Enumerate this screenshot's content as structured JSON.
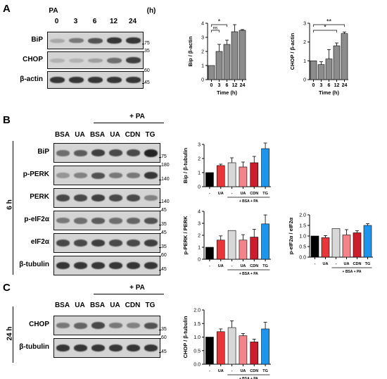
{
  "panels": {
    "a": "A",
    "b": "B",
    "c": "C"
  },
  "panelA": {
    "treatment": "PA",
    "lanes": [
      "0",
      "3",
      "6",
      "12",
      "24"
    ],
    "unit": "(h)",
    "blots": [
      {
        "label": "BiP",
        "mw": "75",
        "levels": [
          0.25,
          0.5,
          0.7,
          0.85,
          0.85
        ]
      },
      {
        "label": "CHOP",
        "mw_top": "35",
        "mw": "",
        "levels": [
          0.2,
          0.2,
          0.3,
          0.55,
          0.8
        ]
      },
      {
        "label": "β-actin",
        "mw_top": "60",
        "mw": "45",
        "levels": [
          0.85,
          0.85,
          0.85,
          0.85,
          0.85
        ]
      }
    ]
  },
  "panelB": {
    "condition": "+ PA",
    "lanes": [
      "BSA",
      "UA",
      "BSA",
      "UA",
      "CDN",
      "TG"
    ],
    "time": "6 h",
    "blots": [
      {
        "label": "BiP",
        "mw": "75",
        "levels": [
          0.55,
          0.65,
          0.8,
          0.75,
          0.75,
          0.95
        ]
      },
      {
        "label": "p-PERK",
        "mw_top": "180",
        "mw": "140",
        "levels": [
          0.35,
          0.45,
          0.7,
          0.5,
          0.5,
          0.85
        ]
      },
      {
        "label": "PERK",
        "mw": "140",
        "levels": [
          0.75,
          0.75,
          0.8,
          0.75,
          0.75,
          0.45
        ]
      },
      {
        "label": "p-eIF2α",
        "mw_top": "45",
        "mw": "35",
        "levels": [
          0.5,
          0.55,
          0.65,
          0.55,
          0.6,
          0.7
        ]
      },
      {
        "label": "eIF2α",
        "mw_top": "45",
        "mw": "35",
        "levels": [
          0.75,
          0.75,
          0.8,
          0.75,
          0.75,
          0.8
        ]
      },
      {
        "label": "β-tubulin",
        "mw_top": "60",
        "mw": "45",
        "levels": [
          0.85,
          0.85,
          0.85,
          0.85,
          0.85,
          0.85
        ]
      }
    ]
  },
  "panelC": {
    "condition": "+ PA",
    "lanes": [
      "BSA",
      "UA",
      "BSA",
      "UA",
      "CDN",
      "TG"
    ],
    "time": "24 h",
    "blots": [
      {
        "label": "CHOP",
        "mw": "35",
        "levels": [
          0.5,
          0.6,
          0.75,
          0.5,
          0.45,
          0.7
        ]
      },
      {
        "label": "β-tubulin",
        "mw_top": "60",
        "mw": "45",
        "levels": [
          0.85,
          0.85,
          0.85,
          0.85,
          0.85,
          0.85
        ]
      }
    ]
  },
  "chart_data": [
    {
      "type": "bar",
      "ylabel": "Bip / β-actin",
      "xlabel": "Time (h)",
      "categories": [
        "0",
        "3",
        "6",
        "12",
        "24"
      ],
      "values": [
        1.0,
        2.0,
        2.5,
        3.4,
        3.5
      ],
      "errors": [
        0,
        0.5,
        0.3,
        0.5,
        0.05
      ],
      "ylim": [
        0,
        4
      ],
      "yticks": [
        "0",
        "1",
        "2",
        "3",
        "4"
      ],
      "annotations": [
        {
          "from": 0,
          "to": 1,
          "text": "ns"
        },
        {
          "from": 0,
          "to": 2,
          "text": "*"
        }
      ]
    },
    {
      "type": "bar",
      "ylabel": "CHOP / β-actin",
      "xlabel": "Time (h)",
      "categories": [
        "0",
        "3",
        "6",
        "12",
        "24"
      ],
      "values": [
        1.0,
        0.8,
        1.1,
        1.8,
        2.45
      ],
      "errors": [
        0,
        0.15,
        0.5,
        0.15,
        0.08
      ],
      "ylim": [
        0,
        3
      ],
      "yticks": [
        "0",
        "1",
        "2",
        "3"
      ],
      "annotations": [
        {
          "from": 0,
          "to": 3,
          "text": "*"
        },
        {
          "from": 0,
          "to": 4,
          "text": "**"
        }
      ]
    },
    {
      "type": "bar",
      "ylabel": "Bip / β-tubulin",
      "categories": [
        "-",
        "UA",
        "-",
        "UA",
        "CDN",
        "TG"
      ],
      "group_label": "+ BSA + PA",
      "values": [
        1.0,
        1.5,
        1.7,
        1.4,
        1.7,
        2.7
      ],
      "errors": [
        0,
        0.1,
        0.35,
        0.35,
        0.45,
        0.4
      ],
      "ylim": [
        0,
        3
      ],
      "yticks": [
        "0",
        "1",
        "2",
        "3"
      ],
      "colors": [
        "#000000",
        "#e8373a",
        "#d8d8d8",
        "#f3858a",
        "#cc1d2c",
        "#1e95ec"
      ]
    },
    {
      "type": "bar",
      "ylabel": "p-PERK / PERK",
      "categories": [
        "-",
        "UA",
        "-",
        "UA",
        "CDN",
        "TG"
      ],
      "group_label": "+ BSA + PA",
      "values": [
        1.0,
        1.6,
        2.4,
        1.6,
        1.85,
        2.95
      ],
      "errors": [
        0,
        0.35,
        0,
        0.45,
        0.65,
        0.75
      ],
      "ylim": [
        0,
        4
      ],
      "yticks": [
        "0",
        "1",
        "2",
        "3",
        "4"
      ],
      "colors": [
        "#000000",
        "#e8373a",
        "#d8d8d8",
        "#f3858a",
        "#cc1d2c",
        "#1e95ec"
      ]
    },
    {
      "type": "bar",
      "ylabel": "p-eIF2α / eIF2α",
      "categories": [
        "-",
        "UA",
        "-",
        "UA",
        "CDN",
        "TG"
      ],
      "group_label": "+ BSA + PA",
      "values": [
        1.0,
        0.92,
        1.35,
        1.05,
        1.15,
        1.5
      ],
      "errors": [
        0,
        0.1,
        0,
        0.25,
        0.1,
        0.08
      ],
      "ylim": [
        0,
        2.0
      ],
      "yticks": [
        "0.0",
        "0.5",
        "1.0",
        "1.5",
        "2.0"
      ],
      "colors": [
        "#000000",
        "#e8373a",
        "#d8d8d8",
        "#f3858a",
        "#cc1d2c",
        "#1e95ec"
      ]
    },
    {
      "type": "bar",
      "ylabel": "CHOP / β-tubulin",
      "categories": [
        "-",
        "UA",
        "-",
        "UA",
        "CDN",
        "TG"
      ],
      "group_label": "+ BSA + PA",
      "values": [
        1.0,
        1.2,
        1.35,
        1.05,
        0.82,
        1.3
      ],
      "errors": [
        0,
        0.1,
        0.25,
        0.08,
        0.1,
        0.25
      ],
      "ylim": [
        0,
        2.0
      ],
      "yticks": [
        "0.0",
        "0.5",
        "1.0",
        "1.5",
        "2.0"
      ],
      "colors": [
        "#000000",
        "#e8373a",
        "#d8d8d8",
        "#f3858a",
        "#cc1d2c",
        "#1e95ec"
      ]
    }
  ]
}
